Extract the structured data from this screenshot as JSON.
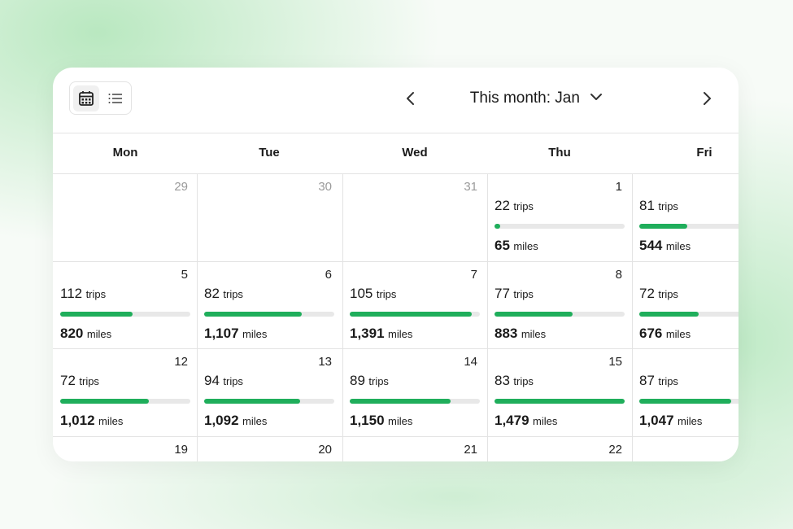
{
  "header": {
    "title": "This month: Jan"
  },
  "weekdays": [
    "Mon",
    "Tue",
    "Wed",
    "Thu",
    "Fri"
  ],
  "trips_unit": "trips",
  "miles_unit": "miles",
  "weeks": [
    [
      {
        "day": 29,
        "muted": true
      },
      {
        "day": 30,
        "muted": true
      },
      {
        "day": 31,
        "muted": true
      },
      {
        "day": 1,
        "trips": 22,
        "miles": {
          "value": 65,
          "label": "65"
        }
      },
      {
        "trips": 81,
        "miles": {
          "value": 544,
          "label": "544"
        }
      }
    ],
    [
      {
        "day": 5,
        "trips": 112,
        "miles": {
          "value": 820,
          "label": "820"
        }
      },
      {
        "day": 6,
        "trips": 82,
        "miles": {
          "value": 1107,
          "label": "1,107"
        }
      },
      {
        "day": 7,
        "trips": 105,
        "miles": {
          "value": 1391,
          "label": "1,391"
        }
      },
      {
        "day": 8,
        "trips": 77,
        "miles": {
          "value": 883,
          "label": "883"
        }
      },
      {
        "trips": 72,
        "miles": {
          "value": 676,
          "label": "676"
        }
      }
    ],
    [
      {
        "day": 12,
        "trips": 72,
        "miles": {
          "value": 1012,
          "label": "1,012"
        }
      },
      {
        "day": 13,
        "trips": 94,
        "miles": {
          "value": 1092,
          "label": "1,092"
        }
      },
      {
        "day": 14,
        "trips": 89,
        "miles": {
          "value": 1150,
          "label": "1,150"
        }
      },
      {
        "day": 15,
        "trips": 83,
        "miles": {
          "value": 1479,
          "label": "1,479"
        }
      },
      {
        "trips": 87,
        "miles": {
          "value": 1047,
          "label": "1,047"
        }
      }
    ],
    [
      {
        "day": 19
      },
      {
        "day": 20
      },
      {
        "day": 21
      },
      {
        "day": 22
      },
      {}
    ]
  ]
}
